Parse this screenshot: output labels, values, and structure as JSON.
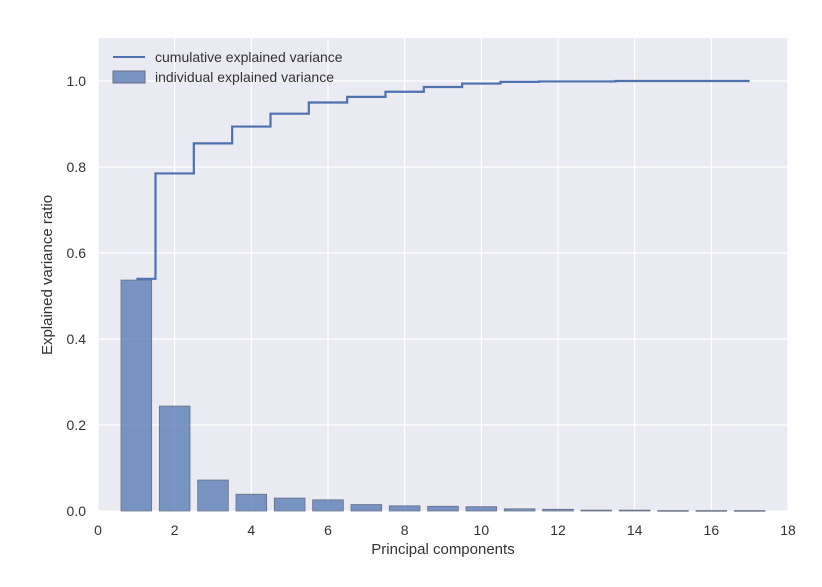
{
  "chart_data": {
    "type": "bar",
    "title": "",
    "xlabel": "Principal components",
    "ylabel": "Explained variance ratio",
    "xlim": [
      0,
      18
    ],
    "ylim": [
      0,
      1.1
    ],
    "x_ticks": [
      "0",
      "2",
      "4",
      "6",
      "8",
      "10",
      "12",
      "14",
      "16",
      "18"
    ],
    "y_ticks": [
      "0.0",
      "0.2",
      "0.4",
      "0.6",
      "0.8",
      "1.0"
    ],
    "grid": true,
    "legend_position": "top-left",
    "series": [
      {
        "name": "individual explained variance",
        "type": "bar",
        "color": "#4c72b0",
        "x": [
          1,
          2,
          3,
          4,
          5,
          6,
          7,
          8,
          9,
          10,
          11,
          12,
          13,
          14,
          15,
          16,
          17
        ],
        "values": [
          0.537,
          0.244,
          0.072,
          0.039,
          0.03,
          0.026,
          0.015,
          0.012,
          0.011,
          0.01,
          0.005,
          0.004,
          0.002,
          0.002,
          0.001,
          0.001,
          0.001
        ]
      },
      {
        "name": "cumulative explained variance",
        "type": "step",
        "color": "#4c72b0",
        "x": [
          1,
          2,
          3,
          4,
          5,
          6,
          7,
          8,
          9,
          10,
          11,
          12,
          13,
          14,
          15,
          16,
          17
        ],
        "values": [
          0.54,
          0.785,
          0.855,
          0.894,
          0.924,
          0.95,
          0.963,
          0.975,
          0.986,
          0.994,
          0.998,
          0.999,
          0.999,
          1.0,
          1.0,
          1.0,
          1.0
        ]
      }
    ]
  }
}
